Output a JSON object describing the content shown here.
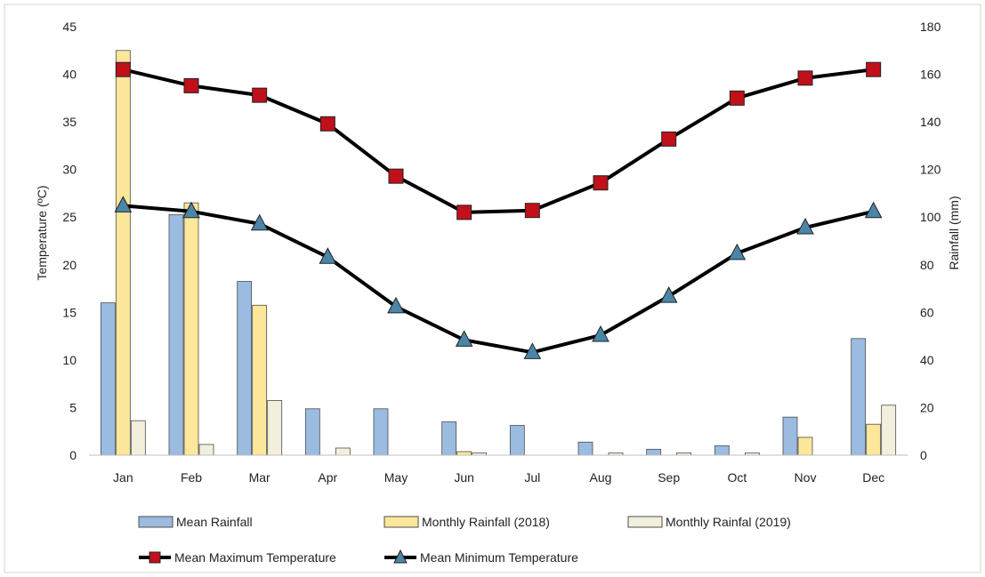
{
  "chart_data": {
    "type": "bar",
    "categories": [
      "Jan",
      "Feb",
      "Mar",
      "Apr",
      "May",
      "Jun",
      "Jul",
      "Aug",
      "Sep",
      "Oct",
      "Nov",
      "Dec"
    ],
    "left_axis": {
      "label": "Temperature (ºC)",
      "ylim": [
        0,
        45
      ],
      "ticks": [
        "0",
        "5",
        "10",
        "15",
        "20",
        "25",
        "30",
        "35",
        "40",
        "45"
      ]
    },
    "right_axis": {
      "label": "Rainfall (mm)",
      "ylim": [
        0,
        180
      ],
      "ticks": [
        "0",
        "20",
        "40",
        "60",
        "80",
        "100",
        "120",
        "140",
        "160",
        "180"
      ]
    },
    "bar_series": [
      {
        "name": "Mean Rainfall",
        "axis": "right",
        "color": "#9bbbe0",
        "values": [
          64,
          101,
          73,
          19.5,
          19.5,
          14,
          12.5,
          5.5,
          2.5,
          4,
          16,
          49
        ]
      },
      {
        "name": "Monthly Rainfall (2018)",
        "axis": "right",
        "color": "#fde79a",
        "values": [
          170,
          106,
          63,
          0,
          0,
          1.5,
          0,
          0,
          0,
          0,
          7.5,
          13
        ]
      },
      {
        "name": "Monthly Rainfal (2019)",
        "axis": "right",
        "color": "#f2f0dd",
        "values": [
          14.5,
          4.5,
          23,
          3,
          0,
          1,
          0,
          1,
          1,
          1,
          0,
          21
        ]
      }
    ],
    "line_series": [
      {
        "name": "Mean Maximum Temperature",
        "axis": "left",
        "marker": "square",
        "marker_color": "#c0101a",
        "values": [
          40.5,
          38.8,
          37.8,
          34.8,
          29.3,
          25.5,
          25.7,
          28.6,
          33.2,
          37.5,
          39.6,
          40.5
        ]
      },
      {
        "name": "Mean Minimum Temperature",
        "axis": "left",
        "marker": "triangle",
        "marker_color": "#4a86a8",
        "values": [
          26.2,
          25.6,
          24.3,
          20.8,
          15.6,
          12.1,
          10.8,
          12.6,
          16.7,
          21.2,
          23.9,
          25.6
        ]
      }
    ],
    "grid": false,
    "legend_position": "bottom"
  }
}
